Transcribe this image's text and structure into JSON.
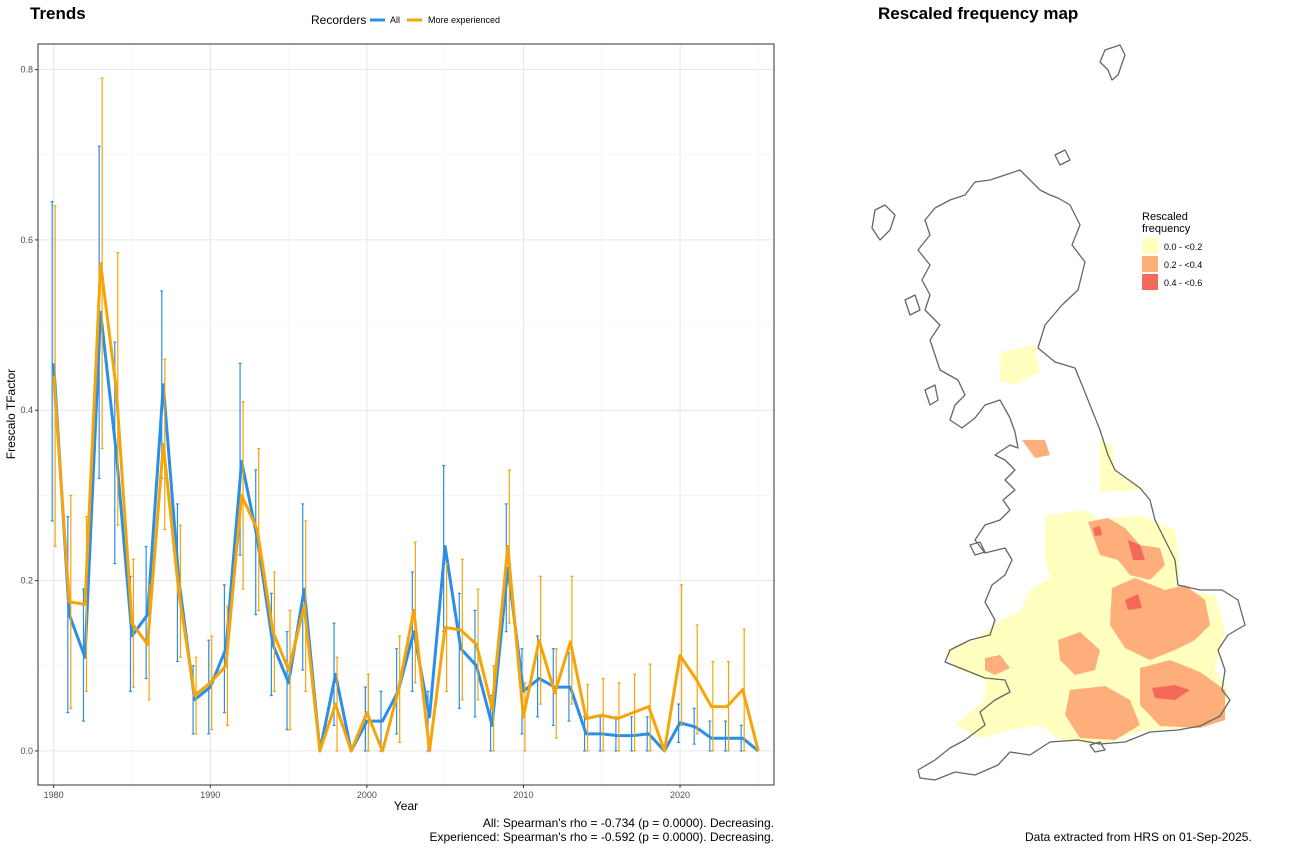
{
  "trends_title": "Trends",
  "map_title": "Rescaled frequency map",
  "stats": {
    "all": "All: Spearman's rho = -0.734 (p = 0.0000). Decreasing.",
    "experienced": "Experienced: Spearman's rho = -0.592 (p = 0.0000). Decreasing."
  },
  "credit": "Data extracted from HRS on 01-Sep-2025.",
  "chart_data": {
    "type": "line",
    "xlabel": "Year",
    "ylabel": "Frescalo TFactor",
    "xlim": [
      1979,
      2026
    ],
    "ylim": [
      -0.04,
      0.83
    ],
    "x_ticks": [
      1980,
      1990,
      2000,
      2010,
      2020
    ],
    "y_ticks": [
      0.0,
      0.2,
      0.4,
      0.6,
      0.8
    ],
    "y_tick_labels": [
      "0.0",
      "0.2",
      "0.4",
      "0.6",
      "0.8"
    ],
    "grid": true,
    "legend_title": "Recorders",
    "legend_position": "top",
    "series": [
      {
        "name": "All",
        "color": "#2b8fe8",
        "points": [
          [
            1980,
            0.455,
            0.27,
            0.645
          ],
          [
            1981,
            0.16,
            0.045,
            0.275
          ],
          [
            1982,
            0.11,
            0.035,
            0.19
          ],
          [
            1983,
            0.515,
            0.32,
            0.71
          ],
          [
            1984,
            0.35,
            0.22,
            0.48
          ],
          [
            1985,
            0.135,
            0.07,
            0.205
          ],
          [
            1986,
            0.16,
            0.085,
            0.24
          ],
          [
            1987,
            0.43,
            0.32,
            0.54
          ],
          [
            1988,
            0.2,
            0.105,
            0.29
          ],
          [
            1989,
            0.06,
            0.02,
            0.1
          ],
          [
            1990,
            0.075,
            0.02,
            0.13
          ],
          [
            1991,
            0.12,
            0.045,
            0.195
          ],
          [
            1992,
            0.34,
            0.23,
            0.455
          ],
          [
            1993,
            0.25,
            0.16,
            0.33
          ],
          [
            1994,
            0.125,
            0.065,
            0.185
          ],
          [
            1995,
            0.08,
            0.025,
            0.14
          ],
          [
            1996,
            0.19,
            0.095,
            0.29
          ],
          [
            1997,
            0.0,
            0.0,
            0.0
          ],
          [
            1998,
            0.09,
            0.03,
            0.15
          ],
          [
            1999,
            0.0,
            0.0,
            0.0
          ],
          [
            2000,
            0.035,
            0.0,
            0.075
          ],
          [
            2001,
            0.035,
            0.0,
            0.07
          ],
          [
            2002,
            0.07,
            0.02,
            0.12
          ],
          [
            2003,
            0.14,
            0.07,
            0.21
          ],
          [
            2004,
            0.04,
            0.0,
            0.07
          ],
          [
            2005,
            0.24,
            0.14,
            0.335
          ],
          [
            2006,
            0.12,
            0.05,
            0.185
          ],
          [
            2007,
            0.1,
            0.04,
            0.165
          ],
          [
            2008,
            0.03,
            0.0,
            0.065
          ],
          [
            2009,
            0.215,
            0.14,
            0.29
          ],
          [
            2010,
            0.07,
            0.02,
            0.12
          ],
          [
            2011,
            0.085,
            0.04,
            0.135
          ],
          [
            2012,
            0.075,
            0.03,
            0.12
          ],
          [
            2013,
            0.075,
            0.035,
            0.115
          ],
          [
            2014,
            0.02,
            0.0,
            0.04
          ],
          [
            2015,
            0.02,
            0.0,
            0.04
          ],
          [
            2016,
            0.018,
            0.0,
            0.04
          ],
          [
            2017,
            0.018,
            0.0,
            0.04
          ],
          [
            2018,
            0.02,
            0.0,
            0.04
          ],
          [
            2019,
            0.0,
            0.0,
            0.0
          ],
          [
            2020,
            0.033,
            0.01,
            0.055
          ],
          [
            2021,
            0.028,
            0.008,
            0.05
          ],
          [
            2022,
            0.015,
            0.0,
            0.035
          ],
          [
            2023,
            0.015,
            0.0,
            0.035
          ],
          [
            2024,
            0.015,
            0.0,
            0.03
          ],
          [
            2025,
            0.0,
            0.0,
            0.0
          ]
        ]
      },
      {
        "name": "More experienced",
        "color": "#f5a50a",
        "points": [
          [
            1980,
            0.44,
            0.24,
            0.64
          ],
          [
            1981,
            0.175,
            0.05,
            0.3
          ],
          [
            1982,
            0.172,
            0.07,
            0.275
          ],
          [
            1983,
            0.572,
            0.355,
            0.79
          ],
          [
            1984,
            0.425,
            0.265,
            0.585
          ],
          [
            1985,
            0.15,
            0.075,
            0.225
          ],
          [
            1986,
            0.125,
            0.06,
            0.195
          ],
          [
            1987,
            0.36,
            0.26,
            0.46
          ],
          [
            1988,
            0.185,
            0.11,
            0.265
          ],
          [
            1989,
            0.065,
            0.02,
            0.11
          ],
          [
            1990,
            0.08,
            0.025,
            0.135
          ],
          [
            1991,
            0.1,
            0.03,
            0.17
          ],
          [
            1992,
            0.3,
            0.19,
            0.41
          ],
          [
            1993,
            0.26,
            0.165,
            0.355
          ],
          [
            1994,
            0.14,
            0.07,
            0.21
          ],
          [
            1995,
            0.095,
            0.025,
            0.165
          ],
          [
            1996,
            0.17,
            0.07,
            0.27
          ],
          [
            1997,
            0.0,
            0.0,
            0.0
          ],
          [
            1998,
            0.055,
            0.0,
            0.11
          ],
          [
            1999,
            0.0,
            0.0,
            0.0
          ],
          [
            2000,
            0.045,
            0.0,
            0.09
          ],
          [
            2001,
            0.0,
            0.0,
            0.0
          ],
          [
            2002,
            0.07,
            0.01,
            0.135
          ],
          [
            2003,
            0.165,
            0.08,
            0.245
          ],
          [
            2004,
            0.0,
            0.0,
            0.0
          ],
          [
            2005,
            0.145,
            0.07,
            0.22
          ],
          [
            2006,
            0.142,
            0.06,
            0.225
          ],
          [
            2007,
            0.125,
            0.06,
            0.19
          ],
          [
            2008,
            0.05,
            0.0,
            0.1
          ],
          [
            2009,
            0.24,
            0.15,
            0.33
          ],
          [
            2010,
            0.04,
            0.0,
            0.08
          ],
          [
            2011,
            0.13,
            0.055,
            0.205
          ],
          [
            2012,
            0.068,
            0.015,
            0.12
          ],
          [
            2013,
            0.128,
            0.055,
            0.205
          ],
          [
            2014,
            0.038,
            0.0,
            0.078
          ],
          [
            2015,
            0.042,
            0.0,
            0.085
          ],
          [
            2016,
            0.038,
            0.0,
            0.08
          ],
          [
            2017,
            0.045,
            0.0,
            0.09
          ],
          [
            2018,
            0.052,
            0.0,
            0.102
          ],
          [
            2019,
            0.0,
            0.0,
            0.0
          ],
          [
            2020,
            0.112,
            0.03,
            0.195
          ],
          [
            2021,
            0.085,
            0.02,
            0.148
          ],
          [
            2022,
            0.052,
            0.0,
            0.105
          ],
          [
            2023,
            0.052,
            0.0,
            0.105
          ],
          [
            2024,
            0.072,
            0.0,
            0.143
          ],
          [
            2025,
            0.0,
            0.0,
            0.0
          ]
        ]
      }
    ]
  },
  "map": {
    "legend_title_lines": [
      "Rescaled",
      "frequency"
    ],
    "legend": [
      {
        "label": "0.0 - <0.2",
        "color": "#ffffc0"
      },
      {
        "label": "0.2 - <0.4",
        "color": "#fdae7b"
      },
      {
        "label": "0.4 - <0.6",
        "color": "#f4695a"
      }
    ],
    "outline_color": "#666666"
  }
}
